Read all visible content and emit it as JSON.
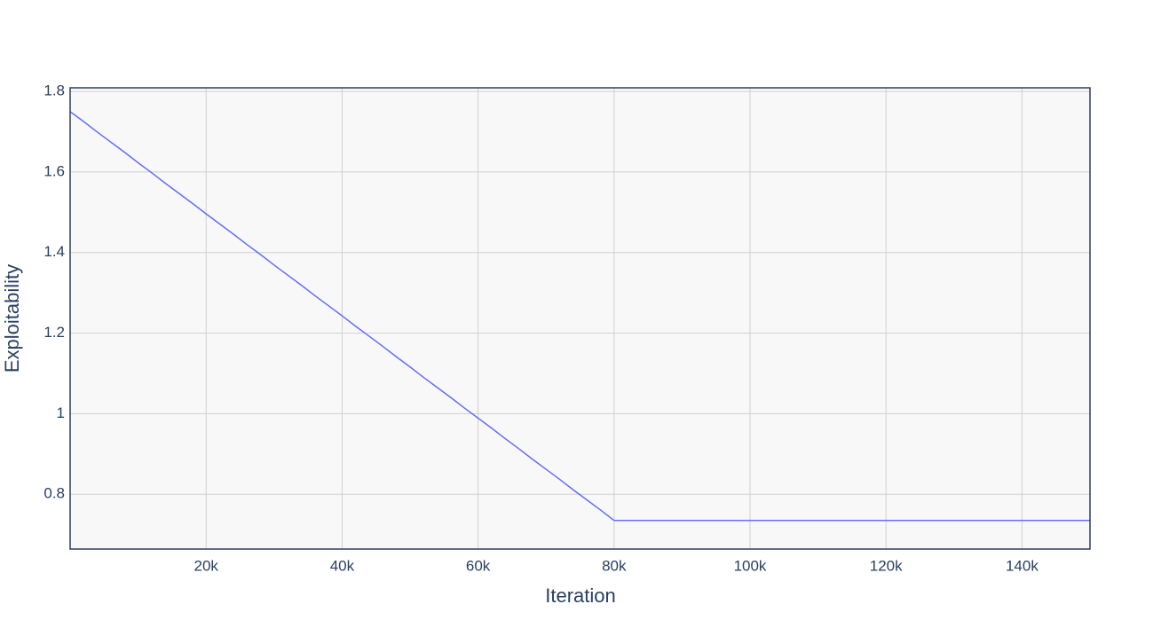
{
  "chart_data": {
    "type": "line",
    "x_label": "Iteration",
    "y_label": "Exploitability",
    "x": [
      0,
      2000,
      4000,
      6000,
      8000,
      10000,
      12000,
      14000,
      16000,
      18000,
      20000,
      22000,
      24000,
      26000,
      28000,
      30000,
      32000,
      34000,
      36000,
      38000,
      40000,
      42000,
      44000,
      46000,
      48000,
      50000,
      52000,
      54000,
      56000,
      58000,
      60000,
      62000,
      64000,
      66000,
      68000,
      70000,
      72000,
      74000,
      76000,
      78000,
      80000,
      90000,
      100000,
      110000,
      120000,
      130000,
      140000,
      150000
    ],
    "series": [
      {
        "color": "#636efa",
        "values": [
          1.75,
          1.725,
          1.699,
          1.674,
          1.649,
          1.623,
          1.598,
          1.572,
          1.547,
          1.522,
          1.496,
          1.471,
          1.446,
          1.42,
          1.395,
          1.369,
          1.344,
          1.319,
          1.293,
          1.268,
          1.243,
          1.217,
          1.192,
          1.167,
          1.141,
          1.116,
          1.09,
          1.065,
          1.04,
          1.014,
          0.989,
          0.964,
          0.938,
          0.913,
          0.887,
          0.862,
          0.837,
          0.811,
          0.786,
          0.761,
          0.735,
          0.735,
          0.735,
          0.735,
          0.735,
          0.735,
          0.735,
          0.735
        ]
      }
    ],
    "xlim": [
      0,
      150000
    ],
    "ylim": [
      0.664,
      1.809
    ],
    "xticks": [
      {
        "value": 20000,
        "label": "20k"
      },
      {
        "value": 40000,
        "label": "40k"
      },
      {
        "value": 60000,
        "label": "60k"
      },
      {
        "value": 80000,
        "label": "80k"
      },
      {
        "value": 100000,
        "label": "100k"
      },
      {
        "value": 120000,
        "label": "120k"
      },
      {
        "value": 140000,
        "label": "140k"
      }
    ],
    "yticks": [
      0.8,
      1,
      1.2,
      1.4,
      1.6,
      1.8
    ],
    "grid": true
  }
}
